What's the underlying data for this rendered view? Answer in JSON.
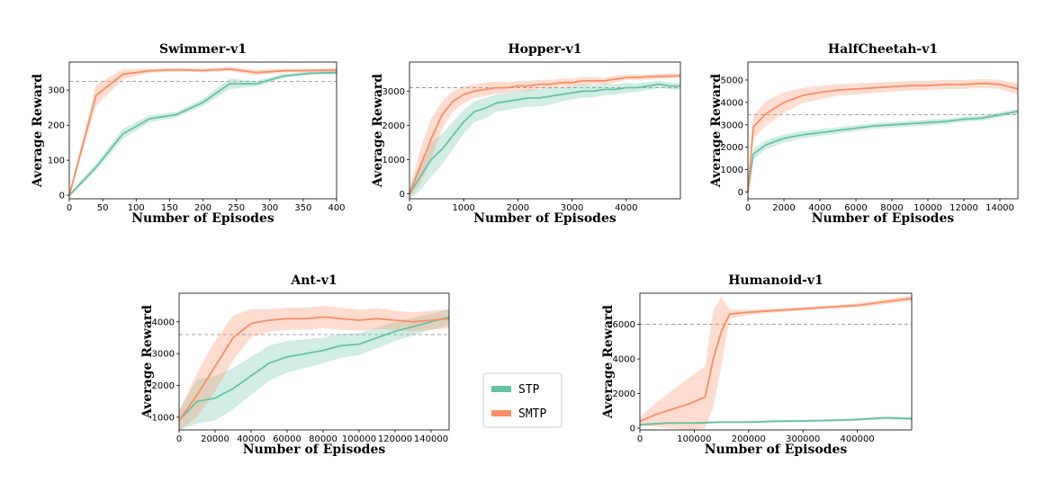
{
  "legend": {
    "items": [
      {
        "name": "STP",
        "color": "#66c2a5"
      },
      {
        "name": "SMTP",
        "color": "#fc8d62"
      }
    ]
  },
  "chart_data": [
    {
      "type": "line",
      "title": "Swimmer-v1",
      "xlabel": "Number of Episodes",
      "ylabel": "Average Reward",
      "xlim": [
        0,
        400
      ],
      "ylim": [
        -10,
        380
      ],
      "xticks": [
        0,
        50,
        100,
        150,
        200,
        250,
        300,
        350,
        400
      ],
      "yticks": [
        0,
        100,
        200,
        300
      ],
      "baseline": 325,
      "series": [
        {
          "name": "STP",
          "x": [
            0,
            40,
            80,
            120,
            160,
            200,
            240,
            280,
            320,
            360,
            400
          ],
          "y": [
            0,
            80,
            175,
            218,
            230,
            265,
            318,
            318,
            340,
            348,
            350
          ],
          "spread": [
            5,
            10,
            15,
            10,
            8,
            10,
            15,
            8,
            6,
            5,
            5
          ]
        },
        {
          "name": "SMTP",
          "x": [
            0,
            40,
            80,
            120,
            160,
            200,
            240,
            280,
            320,
            360,
            400
          ],
          "y": [
            0,
            285,
            345,
            355,
            358,
            356,
            360,
            350,
            355,
            356,
            357
          ],
          "spread": [
            5,
            30,
            15,
            6,
            5,
            5,
            6,
            8,
            5,
            5,
            5
          ]
        }
      ]
    },
    {
      "type": "line",
      "title": "Hopper-v1",
      "xlabel": "Number of Episodes",
      "ylabel": "Average Reward",
      "xlim": [
        0,
        5000
      ],
      "ylim": [
        -150,
        3850
      ],
      "xticks": [
        0,
        1000,
        2000,
        3000,
        4000
      ],
      "yticks": [
        0,
        1000,
        2000,
        3000
      ],
      "baseline": 3100,
      "series": [
        {
          "name": "STP",
          "x": [
            0,
            200,
            400,
            600,
            800,
            1000,
            1200,
            1400,
            1600,
            1800,
            2000,
            2200,
            2400,
            2600,
            2800,
            3000,
            3200,
            3400,
            3600,
            3800,
            4000,
            4200,
            4400,
            4600,
            4800,
            5000
          ],
          "y": [
            0,
            500,
            1000,
            1300,
            1700,
            2100,
            2400,
            2500,
            2650,
            2700,
            2750,
            2800,
            2800,
            2850,
            2900,
            2950,
            3000,
            3000,
            3050,
            3050,
            3100,
            3100,
            3150,
            3200,
            3150,
            3150
          ],
          "spread": [
            150,
            400,
            500,
            450,
            400,
            350,
            300,
            300,
            250,
            250,
            250,
            250,
            250,
            250,
            200,
            200,
            200,
            180,
            180,
            150,
            150,
            120,
            120,
            100,
            100,
            100
          ]
        },
        {
          "name": "SMTP",
          "x": [
            0,
            200,
            400,
            600,
            800,
            1000,
            1200,
            1400,
            1600,
            1800,
            2000,
            2200,
            2400,
            2600,
            2800,
            3000,
            3200,
            3400,
            3600,
            3800,
            4000,
            4200,
            4400,
            4600,
            4800,
            5000
          ],
          "y": [
            0,
            800,
            1600,
            2300,
            2700,
            2900,
            3000,
            3050,
            3100,
            3100,
            3150,
            3150,
            3200,
            3200,
            3250,
            3250,
            3300,
            3300,
            3300,
            3350,
            3400,
            3400,
            3420,
            3430,
            3440,
            3450
          ],
          "spread": [
            150,
            500,
            600,
            400,
            300,
            250,
            200,
            200,
            180,
            150,
            150,
            150,
            130,
            130,
            120,
            120,
            120,
            100,
            100,
            100,
            80,
            80,
            80,
            70,
            70,
            70
          ]
        }
      ]
    },
    {
      "type": "line",
      "title": "HalfCheetah-v1",
      "xlabel": "Number of Episodes",
      "ylabel": "Average Reward",
      "xlim": [
        0,
        15000
      ],
      "ylim": [
        -300,
        5800
      ],
      "xticks": [
        0,
        2000,
        4000,
        6000,
        8000,
        10000,
        12000,
        14000
      ],
      "yticks": [
        0,
        1000,
        2000,
        3000,
        4000,
        5000
      ],
      "baseline": 3450,
      "series": [
        {
          "name": "STP",
          "x": [
            0,
            300,
            1000,
            2000,
            3000,
            4000,
            5000,
            6000,
            7000,
            8000,
            9000,
            10000,
            11000,
            12000,
            13000,
            14000,
            15000
          ],
          "y": [
            0,
            1700,
            2100,
            2400,
            2550,
            2650,
            2750,
            2850,
            2950,
            3000,
            3050,
            3100,
            3150,
            3250,
            3300,
            3450,
            3600
          ],
          "spread": [
            100,
            250,
            200,
            180,
            160,
            150,
            140,
            140,
            130,
            130,
            130,
            130,
            120,
            120,
            120,
            120,
            110
          ]
        },
        {
          "name": "SMTP",
          "x": [
            0,
            300,
            1000,
            2000,
            3000,
            4000,
            5000,
            6000,
            7000,
            8000,
            9000,
            10000,
            11000,
            12000,
            13000,
            14000,
            15000
          ],
          "y": [
            0,
            2900,
            3500,
            4000,
            4300,
            4450,
            4550,
            4600,
            4650,
            4700,
            4750,
            4750,
            4800,
            4800,
            4850,
            4800,
            4600
          ],
          "spread": [
            100,
            500,
            550,
            450,
            350,
            300,
            250,
            250,
            230,
            220,
            220,
            210,
            200,
            200,
            200,
            200,
            250
          ]
        }
      ]
    },
    {
      "type": "line",
      "title": "Ant-v1",
      "xlabel": "Number of Episodes",
      "ylabel": "Average Reward",
      "xlim": [
        0,
        150000
      ],
      "ylim": [
        600,
        4900
      ],
      "xticks": [
        0,
        20000,
        40000,
        60000,
        80000,
        100000,
        120000,
        140000
      ],
      "yticks": [
        1000,
        2000,
        3000,
        4000
      ],
      "baseline": 3600,
      "series": [
        {
          "name": "STP",
          "x": [
            0,
            10000,
            20000,
            30000,
            40000,
            50000,
            60000,
            70000,
            80000,
            90000,
            100000,
            110000,
            120000,
            130000,
            140000,
            150000
          ],
          "y": [
            900,
            1500,
            1600,
            1900,
            2300,
            2700,
            2900,
            3000,
            3100,
            3250,
            3300,
            3500,
            3700,
            3850,
            4000,
            4150
          ],
          "spread": [
            300,
            700,
            700,
            650,
            600,
            550,
            500,
            450,
            400,
            380,
            350,
            330,
            300,
            280,
            250,
            250
          ]
        },
        {
          "name": "SMTP",
          "x": [
            0,
            10000,
            20000,
            30000,
            40000,
            50000,
            60000,
            70000,
            80000,
            90000,
            100000,
            110000,
            120000,
            130000,
            140000,
            150000
          ],
          "y": [
            900,
            1700,
            2600,
            3500,
            3950,
            4050,
            4100,
            4100,
            4150,
            4100,
            4050,
            4100,
            4050,
            4000,
            4050,
            4100
          ],
          "spread": [
            300,
            700,
            800,
            700,
            450,
            350,
            350,
            350,
            350,
            350,
            330,
            330,
            300,
            300,
            300,
            300
          ]
        }
      ]
    },
    {
      "type": "line",
      "title": "Humanoid-v1",
      "xlabel": "Number of Episodes",
      "ylabel": "Average Reward",
      "xlim": [
        0,
        500000
      ],
      "ylim": [
        -100,
        7800
      ],
      "xticks": [
        0,
        100000,
        200000,
        300000,
        400000
      ],
      "yticks": [
        0,
        2000,
        4000,
        6000
      ],
      "baseline": 6000,
      "series": [
        {
          "name": "STP",
          "x": [
            0,
            50000,
            100000,
            150000,
            200000,
            250000,
            300000,
            350000,
            400000,
            450000,
            500000
          ],
          "y": [
            200,
            300,
            300,
            350,
            350,
            400,
            420,
            450,
            500,
            600,
            550
          ],
          "spread": [
            60,
            60,
            60,
            60,
            60,
            70,
            70,
            70,
            80,
            100,
            80
          ]
        },
        {
          "name": "SMTP",
          "x": [
            0,
            30000,
            60000,
            90000,
            120000,
            135000,
            150000,
            165000,
            200000,
            250000,
            300000,
            350000,
            400000,
            450000,
            500000
          ],
          "y": [
            400,
            800,
            1100,
            1400,
            1800,
            4000,
            5600,
            6600,
            6700,
            6800,
            6900,
            7000,
            7100,
            7300,
            7500
          ],
          "spread": [
            200,
            700,
            1100,
            1500,
            1800,
            2800,
            2000,
            250,
            150,
            100,
            100,
            100,
            120,
            150,
            150
          ]
        }
      ]
    }
  ]
}
